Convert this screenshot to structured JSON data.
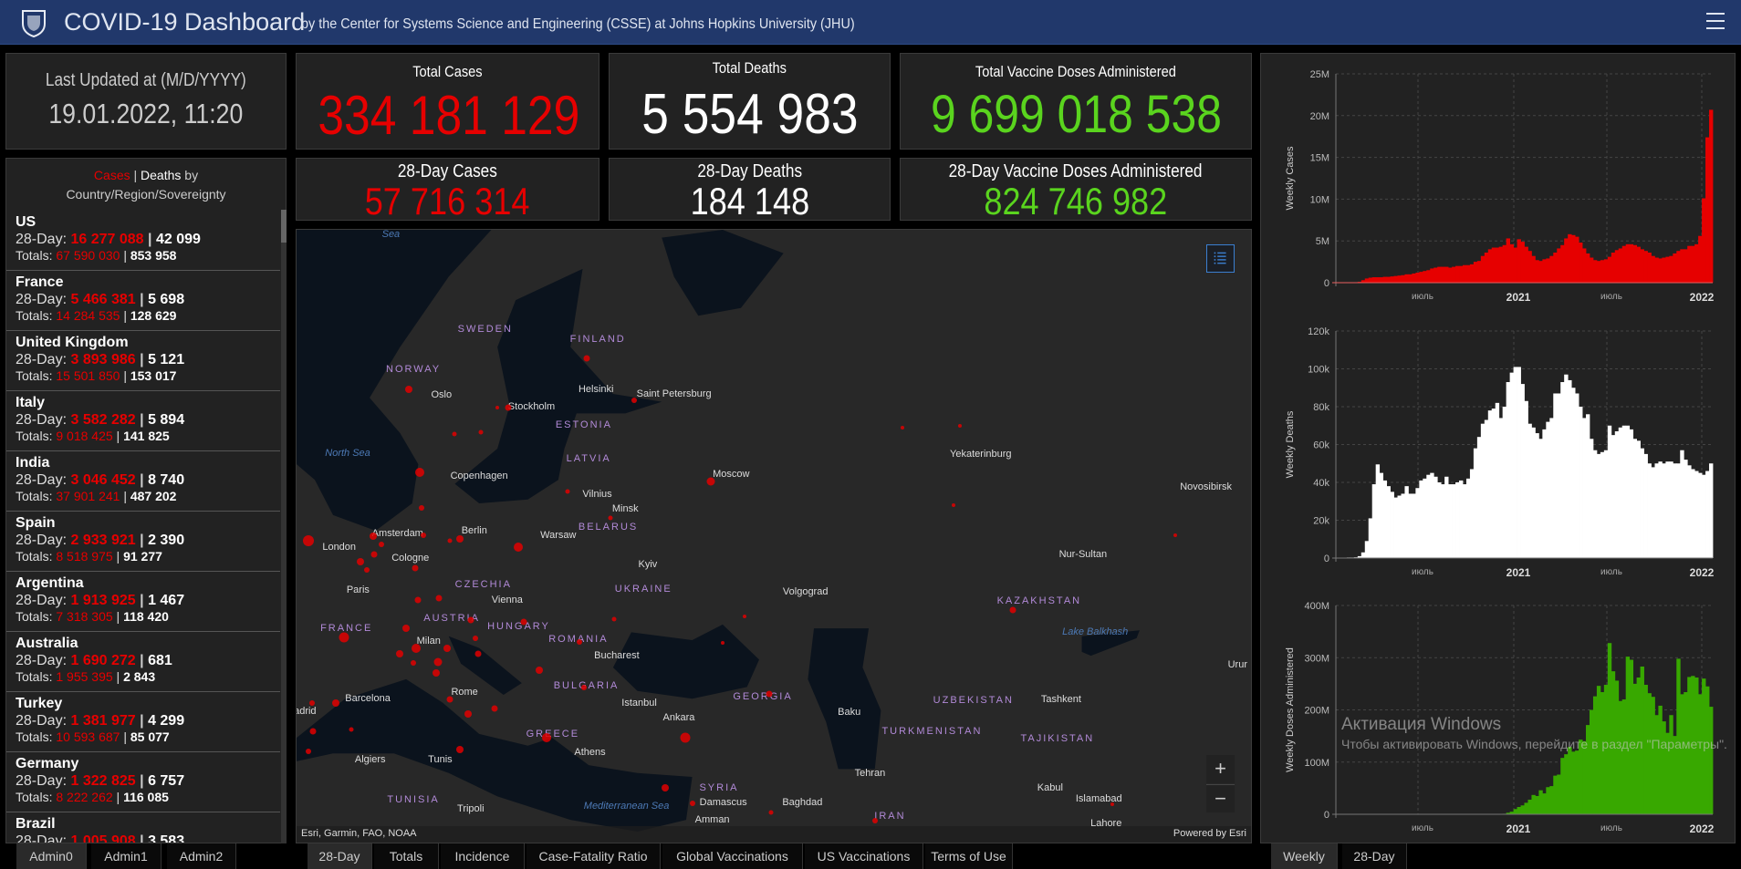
{
  "header": {
    "title": "COVID-19 Dashboard",
    "subtitle": "by the Center for Systems Science and Engineering (CSSE) at Johns Hopkins University (JHU)",
    "menu_icon": "hamburger-icon",
    "bg_color": "#21386b"
  },
  "last_updated": {
    "label": "Last Updated at (M/D/YYYY)",
    "value": "19.01.2022, 11:20"
  },
  "totals": {
    "cases": {
      "label": "Total Cases",
      "value": "334 181 129"
    },
    "deaths": {
      "label": "Total Deaths",
      "value": "5 554 983"
    },
    "vaccines": {
      "label": "Total Vaccine Doses Administered",
      "value": "9 699 018 538"
    }
  },
  "day28": {
    "cases": {
      "label": "28-Day Cases",
      "value": "57 716 314"
    },
    "deaths": {
      "label": "28-Day Deaths",
      "value": "184 148"
    },
    "vaccines": {
      "label": "28-Day Vaccine Doses Administered",
      "value": "824 746 982"
    }
  },
  "colors": {
    "cases": "#e60000",
    "deaths": "#ffffff",
    "vaccines": "#38a800",
    "vaccine_text": "#5ad41e"
  },
  "list": {
    "title_cases": "Cases",
    "separator": "|",
    "title_deaths": "Deaths",
    "title_by": "by",
    "subtitle": "Country/Region/Sovereignty",
    "day28_prefix": "28-Day:",
    "totals_prefix": "Totals:",
    "items": [
      {
        "name": "US",
        "d28_cases": "16 277 088",
        "d28_deaths": "42 099",
        "tot_cases": "67 590 030",
        "tot_deaths": "853 958"
      },
      {
        "name": "France",
        "d28_cases": "5 466 381",
        "d28_deaths": "5 698",
        "tot_cases": "14 284 535",
        "tot_deaths": "128 629"
      },
      {
        "name": "United Kingdom",
        "d28_cases": "3 893 986",
        "d28_deaths": "5 121",
        "tot_cases": "15 501 850",
        "tot_deaths": "153 017"
      },
      {
        "name": "Italy",
        "d28_cases": "3 582 282",
        "d28_deaths": "5 894",
        "tot_cases": "9 018 425",
        "tot_deaths": "141 825"
      },
      {
        "name": "India",
        "d28_cases": "3 046 452",
        "d28_deaths": "8 740",
        "tot_cases": "37 901 241",
        "tot_deaths": "487 202"
      },
      {
        "name": "Spain",
        "d28_cases": "2 933 921",
        "d28_deaths": "2 390",
        "tot_cases": "8 518 975",
        "tot_deaths": "91 277"
      },
      {
        "name": "Argentina",
        "d28_cases": "1 913 925",
        "d28_deaths": "1 467",
        "tot_cases": "7 318 305",
        "tot_deaths": "118 420"
      },
      {
        "name": "Australia",
        "d28_cases": "1 690 272",
        "d28_deaths": "681",
        "tot_cases": "1 955 395",
        "tot_deaths": "2 843"
      },
      {
        "name": "Turkey",
        "d28_cases": "1 381 977",
        "d28_deaths": "4 299",
        "tot_cases": "10 593 687",
        "tot_deaths": "85 077"
      },
      {
        "name": "Germany",
        "d28_cases": "1 322 825",
        "d28_deaths": "6 757",
        "tot_cases": "8 222 262",
        "tot_deaths": "116 085"
      },
      {
        "name": "Brazil",
        "d28_cases": "1 005 908",
        "d28_deaths": "3 583",
        "tot_cases": "",
        "tot_deaths": ""
      }
    ]
  },
  "map": {
    "attribution": "Esri, Garmin, FAO, NOAA",
    "powered": "Powered by Esri",
    "legend_icon": "legend-list-icon",
    "zoom_in": "+",
    "zoom_out": "−",
    "countries": [
      "SWEDEN",
      "FINLAND",
      "NORWAY",
      "ESTONIA",
      "LATVIA",
      "BELARUS",
      "UKRAINE",
      "CZECHIA",
      "AUSTRIA",
      "HUNGARY",
      "ROMANIA",
      "BULGARIA",
      "GREECE",
      "FRANCE",
      "KAZAKHSTAN",
      "GEORGIA",
      "UZBEKISTAN",
      "TURKMENISTAN",
      "TAJIKISTAN",
      "SYRIA",
      "TUNISIA",
      "IRAN"
    ],
    "cities": [
      "Oslo",
      "Stockholm",
      "Helsinki",
      "Saint Petersburg",
      "Copenhagen",
      "Moscow",
      "Yekaterinburg",
      "Novosibirsk",
      "Vilnius",
      "Minsk",
      "Amsterdam",
      "Berlin",
      "Warsaw",
      "London",
      "Cologne",
      "Kyiv",
      "Nur-Sultan",
      "Paris",
      "Vienna",
      "Volgograd",
      "Milan",
      "Bucharest",
      "Barcelona",
      "Rome",
      "Istanbul",
      "Ankara",
      "Baku",
      "Tashkent",
      "Athens",
      "Algiers",
      "Tunis",
      "Tehran",
      "Kabul",
      "Islamabad",
      "Damascus",
      "Baghdad",
      "Tripoli",
      "Amman",
      "adrid",
      "Urur",
      "Lahore"
    ],
    "water": [
      "Sea",
      "North Sea",
      "Mediterranean Sea",
      "Lake Balkhash"
    ]
  },
  "tabs_left": [
    {
      "label": "Admin0",
      "active": true
    },
    {
      "label": "Admin1",
      "active": false
    },
    {
      "label": "Admin2",
      "active": false
    }
  ],
  "tabs_center": [
    {
      "label": "28-Day",
      "active": true
    },
    {
      "label": "Totals",
      "active": false
    },
    {
      "label": "Incidence",
      "active": false
    },
    {
      "label": "Case-Fatality Ratio",
      "active": false
    },
    {
      "label": "Global Vaccinations",
      "active": false
    },
    {
      "label": "US Vaccinations",
      "active": false
    },
    {
      "label": "Terms of Use",
      "active": false
    }
  ],
  "tabs_right": [
    {
      "label": "Weekly",
      "active": true
    },
    {
      "label": "28-Day",
      "active": false
    }
  ],
  "watermark": {
    "line1": "Активация Windows",
    "line2": "Чтобы активировать Windows, перейдите в раздел \"Параметры\"."
  },
  "chart_data": [
    {
      "type": "bar",
      "ylabel": "Weekly Cases",
      "ylim": [
        0,
        25000000.0
      ],
      "yticks": [
        0,
        5000000.0,
        10000000.0,
        15000000.0,
        20000000.0,
        25000000.0
      ],
      "ytick_labels": [
        "0",
        "5M",
        "10M",
        "15M",
        "20M",
        "25M"
      ],
      "x_ticks": [
        "июль",
        "2021",
        "июль",
        "2022"
      ],
      "grid": true,
      "color": "#e60000",
      "values": [
        0,
        0,
        0,
        0,
        0,
        0,
        100000.0,
        300000.0,
        500000.0,
        600000.0,
        650000.0,
        650000.0,
        650000.0,
        700000.0,
        700000.0,
        750000.0,
        800000.0,
        850000.0,
        900000.0,
        1000000.0,
        1000000.0,
        1100000.0,
        1200000.0,
        1300000.0,
        1400000.0,
        1500000.0,
        1700000.0,
        1800000.0,
        1900000.0,
        1900000.0,
        1900000.0,
        1800000.0,
        1900000.0,
        2000000.0,
        2000000.0,
        2100000.0,
        2100000.0,
        2200000.0,
        2500000.0,
        2600000.0,
        3200000.0,
        3600000.0,
        4000000.0,
        4200000.0,
        4200000.0,
        4300000.0,
        4500000.0,
        5300000.0,
        4600000.0,
        4200000.0,
        5200000.0,
        4900000.0,
        4300000.0,
        3800000.0,
        3200000.0,
        2700000.0,
        2600000.0,
        2800000.0,
        2900000.0,
        3200000.0,
        3600000.0,
        4100000.0,
        4500000.0,
        5300000.0,
        5800000.0,
        5700000.0,
        5500000.0,
        4800000.0,
        4100000.0,
        3500000.0,
        3000000.0,
        2700000.0,
        2600000.0,
        2700000.0,
        2800000.0,
        3100000.0,
        3600000.0,
        3900000.0,
        4100000.0,
        4400000.0,
        4600000.0,
        4600000.0,
        4500000.0,
        4300000.0,
        4000000.0,
        3800000.0,
        3600000.0,
        3200000.0,
        3000000.0,
        2900000.0,
        3000000.0,
        3100000.0,
        3200000.0,
        3500000.0,
        3800000.0,
        4000000.0,
        4000000.0,
        4400000.0,
        4400000.0,
        4600000.0,
        5600000.0,
        10100000.0,
        17400000.0,
        20700000.0
      ]
    },
    {
      "type": "bar",
      "ylabel": "Weekly Deaths",
      "ylim": [
        0,
        120000.0
      ],
      "yticks": [
        0,
        20000.0,
        40000.0,
        60000.0,
        80000.0,
        100000.0,
        120000.0
      ],
      "ytick_labels": [
        "0",
        "20k",
        "40k",
        "60k",
        "80k",
        "100k",
        "120k"
      ],
      "x_ticks": [
        "июль",
        "2021",
        "июль",
        "2022"
      ],
      "grid": true,
      "color": "#ffffff",
      "values": [
        100,
        100,
        200,
        300,
        300,
        400,
        1000,
        3000,
        9000,
        21000,
        39000,
        49500,
        45000,
        41000,
        38000,
        35000,
        32000,
        33000,
        34000,
        38000,
        34000,
        34000,
        37000,
        41000,
        42000,
        44000,
        45000,
        43000,
        40000,
        39000,
        43000,
        39000,
        39000,
        40000,
        41000,
        39000,
        42000,
        47000,
        58000,
        64000,
        71000,
        73000,
        78000,
        79000,
        82000,
        74000,
        80000,
        93000,
        98000,
        101000,
        101000,
        92000,
        83000,
        71000,
        69000,
        66000,
        63000,
        68000,
        72000,
        74000,
        87000,
        87000,
        93000,
        97000,
        94000,
        90000,
        87000,
        80000,
        74000,
        76000,
        63000,
        57000,
        55000,
        56000,
        57000,
        70000,
        65000,
        67000,
        69000,
        70000,
        70000,
        68000,
        63000,
        62000,
        58000,
        55000,
        50000,
        48000,
        50000,
        51000,
        50000,
        51000,
        51000,
        50000,
        50000,
        57000,
        52000,
        49000,
        47000,
        46000,
        45000,
        44000,
        46000,
        50000
      ]
    },
    {
      "type": "bar",
      "ylabel": "Weekly Doses Administered",
      "ylim": [
        0,
        400000000.0
      ],
      "yticks": [
        0,
        100000000.0,
        200000000.0,
        300000000.0,
        400000000.0
      ],
      "ytick_labels": [
        "0",
        "100M",
        "200M",
        "300M",
        "400M"
      ],
      "x_ticks": [
        "июль",
        "2021",
        "июль",
        "2022"
      ],
      "grid": true,
      "color": "#38a800",
      "values": [
        0,
        0,
        0,
        0,
        0,
        0,
        0,
        0,
        0,
        0,
        0,
        0,
        0,
        0,
        0,
        0,
        0,
        0,
        0,
        0,
        0,
        0,
        0,
        0,
        0,
        0,
        0,
        0,
        0,
        0,
        0,
        0,
        0,
        0,
        0,
        0,
        0,
        0,
        0,
        0,
        0,
        0,
        0,
        0,
        0,
        0,
        1000000.0,
        3000000.0,
        5000000.0,
        10000000.0,
        14000000.0,
        17000000.0,
        22000000.0,
        28000000.0,
        37000000.0,
        35000000.0,
        46000000.0,
        40000000.0,
        52000000.0,
        54000000.0,
        74000000.0,
        76000000.0,
        108000000.0,
        115000000.0,
        129000000.0,
        120000000.0,
        122000000.0,
        143000000.0,
        140000000.0,
        171000000.0,
        200000000.0,
        226000000.0,
        246000000.0,
        234000000.0,
        248000000.0,
        328000000.0,
        274000000.0,
        256000000.0,
        217000000.0,
        220000000.0,
        302000000.0,
        296000000.0,
        250000000.0,
        262000000.0,
        283000000.0,
        248000000.0,
        232000000.0,
        225000000.0,
        190000000.0,
        208000000.0,
        178000000.0,
        156000000.0,
        190000000.0,
        150000000.0,
        298000000.0,
        230000000.0,
        234000000.0,
        263000000.0,
        265000000.0,
        262000000.0,
        230000000.0,
        260000000.0,
        245000000.0,
        206000000.0
      ]
    }
  ]
}
